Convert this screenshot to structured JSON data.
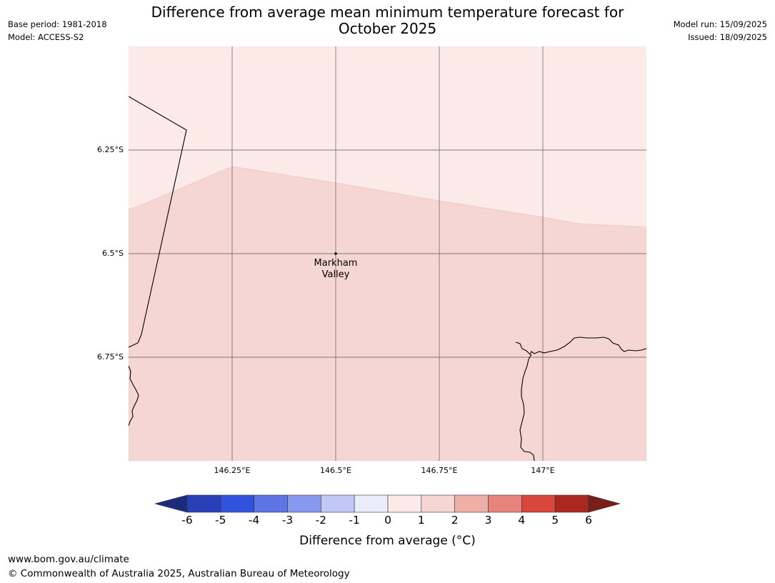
{
  "header": {
    "base_period": "Base period: 1981-2018",
    "model": "Model: ACCESS-S2",
    "model_run": "Model run: 15/09/2025",
    "issued": "Issued: 18/09/2025",
    "title_line1": "Difference from average mean minimum temperature forecast for",
    "title_line2": "October 2025"
  },
  "map": {
    "lat_ticks": [
      "6.25°S",
      "6.5°S",
      "6.75°S"
    ],
    "lon_ticks": [
      "146.25°E",
      "146.5°E",
      "146.75°E",
      "147°E"
    ],
    "place": {
      "name_line1": "Markham",
      "name_line2": "Valley"
    },
    "colors": {
      "band_0_1": "#fbeae8",
      "band_1_2": "#f6d6d3",
      "grid": "#555555",
      "coast": "#000000"
    }
  },
  "colorbar": {
    "labels": [
      "-6",
      "-5",
      "-4",
      "-3",
      "-2",
      "-1",
      "0",
      "1",
      "2",
      "3",
      "4",
      "5",
      "6"
    ],
    "colors": [
      "#1d2b7e",
      "#2a40b8",
      "#3251de",
      "#5c74e6",
      "#8798ee",
      "#c2c8f5",
      "#ebedfd",
      "#fbeae8",
      "#f6d6d3",
      "#efafa9",
      "#e8837c",
      "#d9463b",
      "#ab2820",
      "#7a1e1a"
    ],
    "title": "Difference from average (°C)"
  },
  "footer": {
    "website": "www.bom.gov.au/climate",
    "copyright": "© Commonwealth of Australia 2025, Australian Bureau of Meteorology"
  }
}
